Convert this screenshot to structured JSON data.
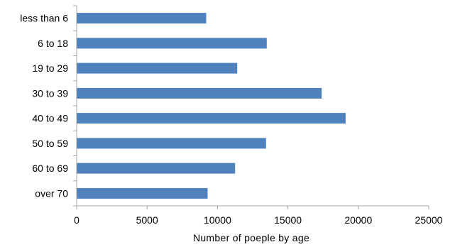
{
  "chart_data": {
    "type": "bar",
    "orientation": "horizontal",
    "title": "",
    "xlabel": "Number of poeple  by age",
    "ylabel": "",
    "categories": [
      "less than 6",
      "6 to 18",
      "19 to 29",
      "30 to 39",
      "40 to 49",
      "50 to 59",
      "60 to 69",
      "over 70"
    ],
    "values": [
      9200,
      13500,
      11400,
      17400,
      19100,
      13450,
      11250,
      9300
    ],
    "xlim": [
      0,
      25000
    ],
    "x_ticks": [
      0,
      5000,
      10000,
      15000,
      20000,
      25000
    ],
    "x_tick_labels": [
      "0",
      "5000",
      "10000",
      "15000",
      "20000",
      "25000"
    ],
    "grid": false,
    "legend": "none",
    "bar_color": "#4F81BD",
    "axis_color": "#A6A6A6"
  }
}
